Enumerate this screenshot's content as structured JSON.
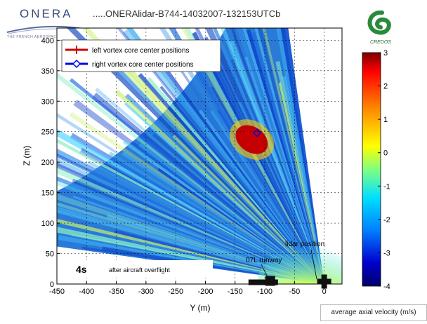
{
  "header": {
    "logo_text": "ONERA",
    "logo_subtitle": "THE FRENCH AEROSPACE LAB",
    "title": ".....ONERAlidar-B744-14032007-132153UTCb",
    "right_logo_text": "CREDOS"
  },
  "chart_data": {
    "type": "heatmap",
    "xlabel": "Y (m)",
    "ylabel": "Z (m)",
    "xlim": [
      -450,
      30
    ],
    "ylim": [
      0,
      420
    ],
    "x_ticks": [
      -450,
      -400,
      -350,
      -300,
      -250,
      -200,
      -150,
      -100,
      -50,
      0
    ],
    "y_ticks": [
      0,
      50,
      100,
      150,
      200,
      250,
      300,
      350,
      400
    ],
    "grid": true,
    "legend_placement": "top-left",
    "series": [
      {
        "name": "left vortex core center positions",
        "color": "#cc0000",
        "marker": "plus",
        "points": [
          {
            "x": -130,
            "y": 245
          }
        ]
      },
      {
        "name": "right vortex core center positions",
        "color": "#0000ee",
        "marker": "diamond",
        "points": [
          {
            "x": -113,
            "y": 248
          }
        ]
      }
    ],
    "annotations": {
      "time_label": "4s",
      "time_text": "after aircraft overflight",
      "runway_label": "07L runway",
      "lidar_label": "lidar position"
    },
    "markers": {
      "runway": {
        "x": -92,
        "y": 4
      },
      "lidar": {
        "x": 0,
        "y": 4
      }
    },
    "colorbar": {
      "label": "average axial velocity (m/s)",
      "min": -4,
      "max": 3,
      "ticks": [
        3,
        2,
        1,
        0,
        -1,
        -2,
        -3,
        -4
      ],
      "colors": [
        "#7a0000",
        "#ff0000",
        "#ff8800",
        "#ffff00",
        "#80ff80",
        "#00e0ff",
        "#0080ff",
        "#0000cc",
        "#00006a"
      ]
    }
  }
}
